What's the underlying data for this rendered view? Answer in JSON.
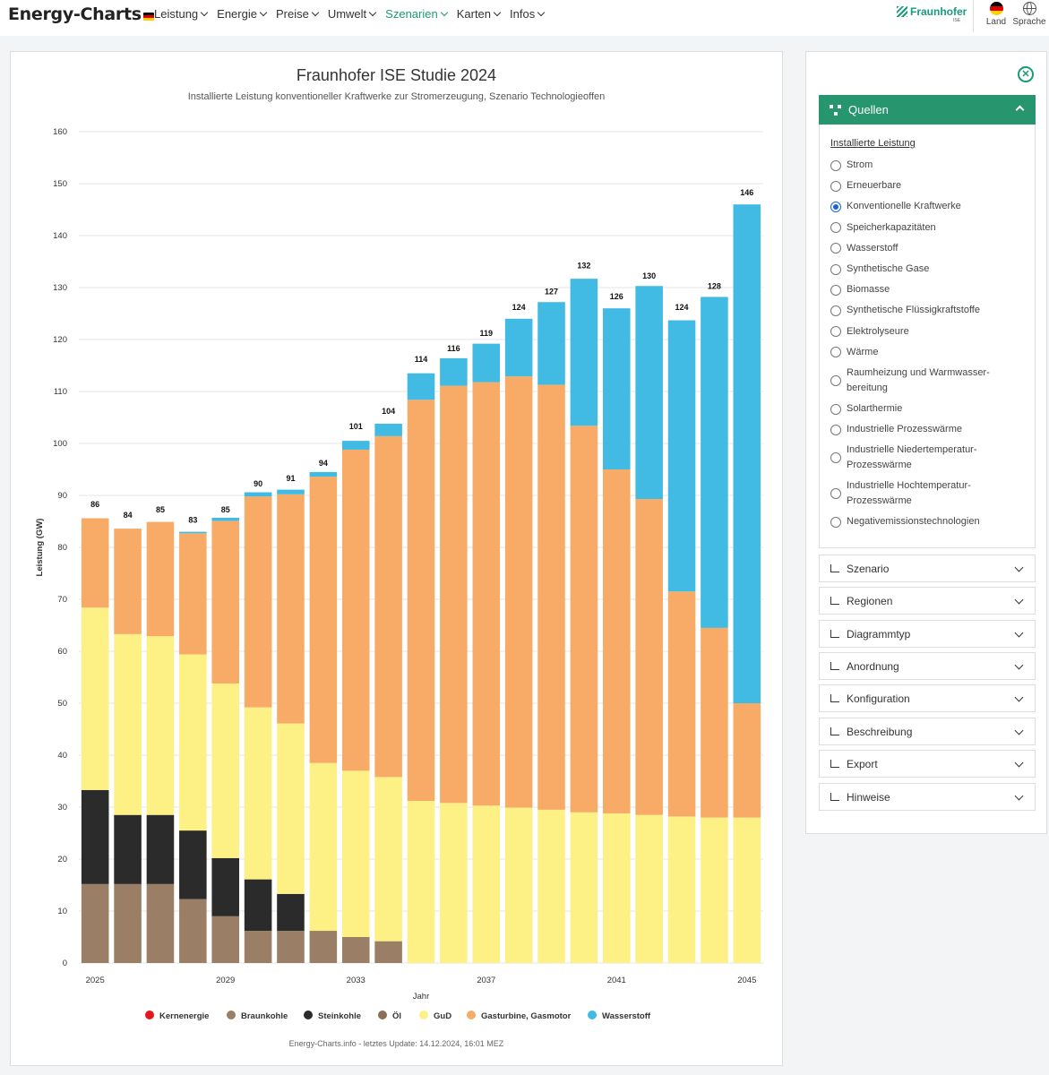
{
  "nav": {
    "logo": "Energy-Charts",
    "items": [
      {
        "label": "Leistung"
      },
      {
        "label": "Energie"
      },
      {
        "label": "Preise"
      },
      {
        "label": "Umwelt"
      },
      {
        "label": "Szenarien",
        "active": true
      },
      {
        "label": "Karten"
      },
      {
        "label": "Infos"
      }
    ],
    "partner": "Fraunhofer",
    "partner_sub": "ISE",
    "land_label": "Land",
    "sprache_label": "Sprache"
  },
  "chart": {
    "footer": "Energy-Charts.info - letztes Update: 14.12.2024, 16:01 MEZ"
  },
  "chart_data": {
    "type": "bar",
    "stacked": true,
    "title": "Fraunhofer ISE Studie 2024",
    "subtitle": "Installierte Leistung konventioneller Kraftwerke zur Stromerzeugung, Szenario Technologieoffen",
    "xlabel": "Jahr",
    "ylabel": "Leistung (GW)",
    "ylim": [
      0,
      160
    ],
    "yticks": [
      0,
      10,
      20,
      30,
      40,
      50,
      60,
      70,
      80,
      90,
      100,
      110,
      120,
      130,
      140,
      150,
      160
    ],
    "grid": true,
    "legend_position": "bottom",
    "categories": [
      "2025",
      "2026",
      "2027",
      "2028",
      "2029",
      "2030",
      "2031",
      "2032",
      "2033",
      "2034",
      "2035",
      "2036",
      "2037",
      "2038",
      "2039",
      "2040",
      "2041",
      "2042",
      "2043",
      "2044",
      "2045"
    ],
    "xtick_labels": [
      "2025",
      "2029",
      "2033",
      "2037",
      "2041",
      "2045"
    ],
    "totals": [
      86,
      84,
      85,
      83,
      85,
      90,
      91,
      94,
      101,
      104,
      114,
      116,
      119,
      124,
      127,
      132,
      126,
      130,
      124,
      128,
      146
    ],
    "series": [
      {
        "name": "Kernenergie",
        "color": "#e3161b",
        "values": [
          0,
          0,
          0,
          0,
          0,
          0,
          0,
          0,
          0,
          0,
          0,
          0,
          0,
          0,
          0,
          0,
          0,
          0,
          0,
          0,
          0
        ]
      },
      {
        "name": "Braunkohle",
        "color": "#9a7f66",
        "values": [
          15.2,
          15.2,
          15.2,
          12.3,
          9.0,
          6.2,
          6.2,
          6.2,
          5.0,
          4.2,
          0,
          0,
          0,
          0,
          0,
          0,
          0,
          0,
          0,
          0,
          0
        ]
      },
      {
        "name": "Steinkohle",
        "color": "#2b2b2b",
        "values": [
          18.1,
          13.3,
          13.3,
          13.2,
          11.2,
          9.9,
          7.1,
          0,
          0,
          0,
          0,
          0,
          0,
          0,
          0,
          0,
          0,
          0,
          0,
          0,
          0
        ]
      },
      {
        "name": "Öl",
        "color": "#8a6e57",
        "values": [
          0,
          0,
          0,
          0,
          0,
          0,
          0,
          0,
          0,
          0,
          0,
          0,
          0,
          0,
          0,
          0,
          0,
          0,
          0,
          0,
          0
        ]
      },
      {
        "name": "GuD",
        "color": "#fdf186",
        "values": [
          35.1,
          34.8,
          34.4,
          33.9,
          33.6,
          33.1,
          32.8,
          32.3,
          32.0,
          31.6,
          31.2,
          30.8,
          30.3,
          29.9,
          29.5,
          29.0,
          28.8,
          28.5,
          28.2,
          28.0,
          28.0
        ]
      },
      {
        "name": "Gasturbine, Gasmotor",
        "color": "#f8ab66",
        "values": [
          17.2,
          20.3,
          22.0,
          23.3,
          31.3,
          40.6,
          44.1,
          55.1,
          61.8,
          65.6,
          77.2,
          80.3,
          81.5,
          83.0,
          81.8,
          74.4,
          66.2,
          60.8,
          43.3,
          36.5,
          22.0
        ]
      },
      {
        "name": "Wasserstoff",
        "color": "#41bbe3",
        "values": [
          0,
          0,
          0,
          0.3,
          0.6,
          0.8,
          0.9,
          0.9,
          1.7,
          2.4,
          5.1,
          5.3,
          7.4,
          11.1,
          15.9,
          28.3,
          31.0,
          41.0,
          52.2,
          63.7,
          96.0
        ]
      }
    ]
  },
  "sidebar": {
    "close_icon": "close-circle-icon",
    "sources": {
      "header": "Quellen",
      "group_label": "Installierte Leistung",
      "options": [
        {
          "label": "Strom",
          "checked": false
        },
        {
          "label": "Erneuerbare",
          "checked": false
        },
        {
          "label": "Konventionelle Kraftwerke",
          "checked": true
        },
        {
          "label": "Speicherkapazitäten",
          "checked": false
        },
        {
          "label": "Wasserstoff",
          "checked": false
        },
        {
          "label": "Synthetische Gase",
          "checked": false
        },
        {
          "label": "Biomasse",
          "checked": false
        },
        {
          "label": "Synthetische Flüssigkraftstoffe",
          "checked": false
        },
        {
          "label": "Elektrolyseure",
          "checked": false
        },
        {
          "label": "Wärme",
          "checked": false
        },
        {
          "label": "Raumheizung und Warmwasser-",
          "label2": "bereitung",
          "checked": false
        },
        {
          "label": "Solarthermie",
          "checked": false
        },
        {
          "label": "Industrielle Prozesswärme",
          "checked": false
        },
        {
          "label": "Industrielle Niedertemperatur-",
          "label2": "Prozesswärme",
          "checked": false
        },
        {
          "label": "Industrielle Hochtemperatur-",
          "label2": "Prozesswärme",
          "checked": false
        },
        {
          "label": "Negativemissionstechnologien",
          "checked": false
        }
      ]
    },
    "accordions": [
      {
        "label": "Szenario"
      },
      {
        "label": "Regionen"
      },
      {
        "label": "Diagrammtyp"
      },
      {
        "label": "Anordnung"
      },
      {
        "label": "Konfiguration"
      },
      {
        "label": "Beschreibung"
      },
      {
        "label": "Export"
      },
      {
        "label": "Hinweise"
      }
    ]
  }
}
